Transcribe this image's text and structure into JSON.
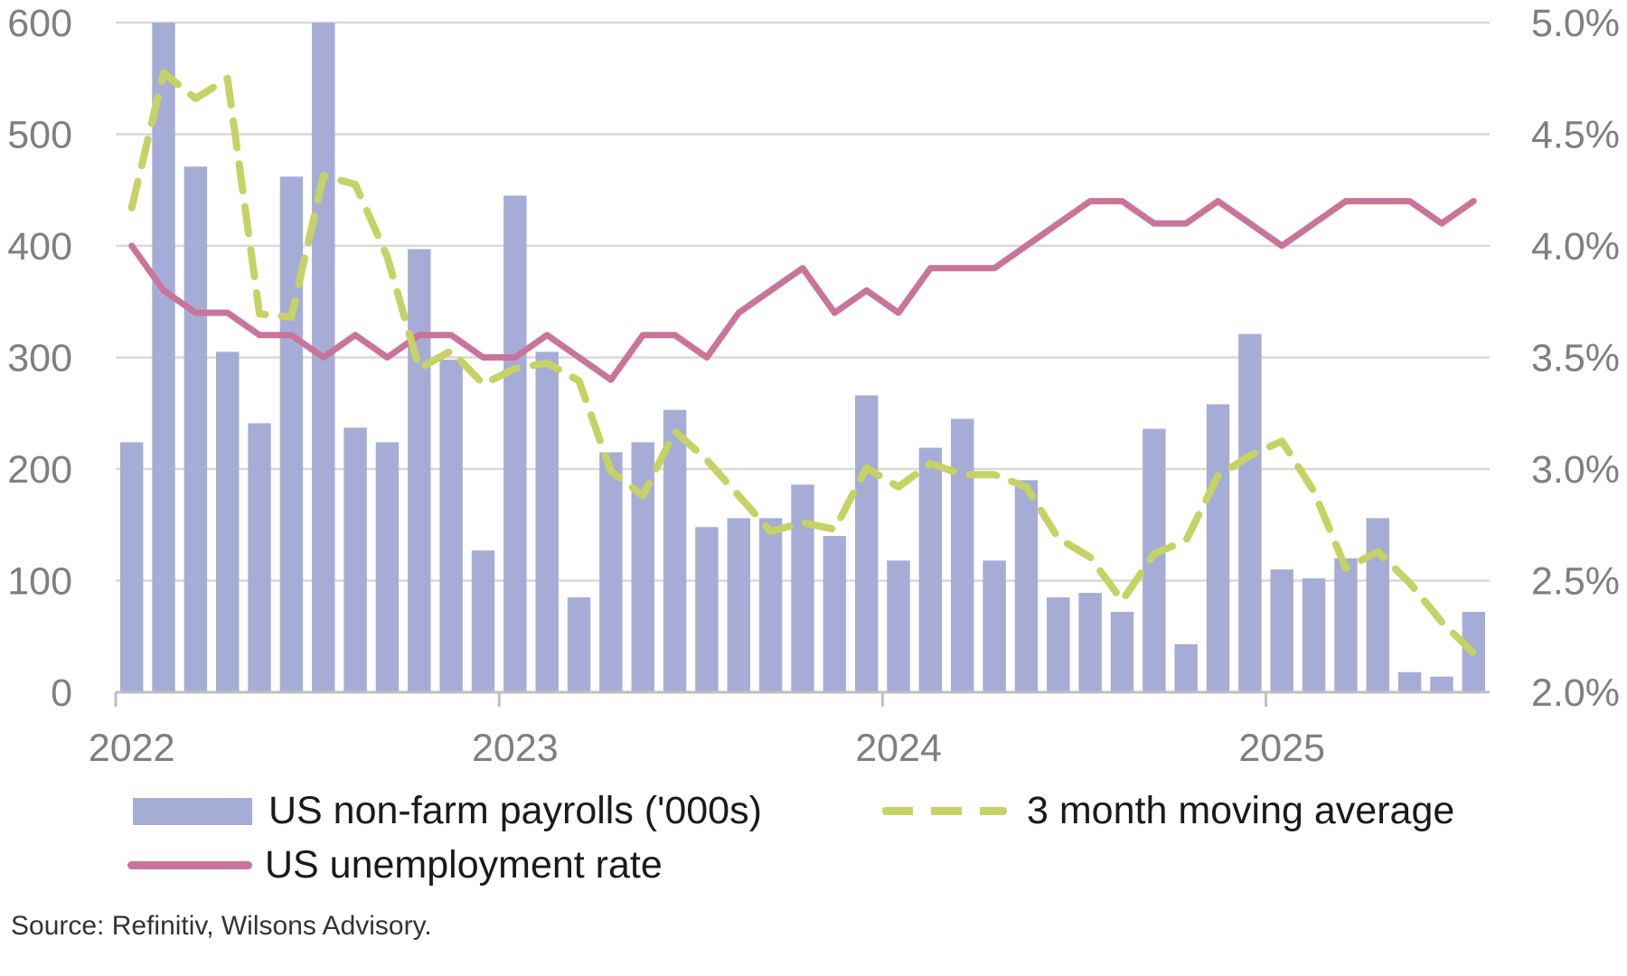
{
  "chart_data": {
    "type": "bar",
    "title": "",
    "colors": {
      "payrolls": "#a5add6",
      "moving_average": "#c6d264",
      "unemployment": "#c9749a",
      "grid": "#d9d9d9"
    },
    "x_tick_labels": [
      "2022",
      "2023",
      "2024",
      "2025"
    ],
    "left_axis": {
      "ylim": [
        0,
        600
      ],
      "ticks": [
        "0",
        "100",
        "200",
        "300",
        "400",
        "500",
        "600"
      ]
    },
    "right_axis": {
      "ylim": [
        2.0,
        5.0
      ],
      "ticks": [
        "2.0%",
        "2.5%",
        "3.0%",
        "3.5%",
        "4.0%",
        "4.5%",
        "5.0%"
      ]
    },
    "months": [
      "2022-01",
      "2022-02",
      "2022-03",
      "2022-04",
      "2022-05",
      "2022-06",
      "2022-07",
      "2022-08",
      "2022-09",
      "2022-10",
      "2022-11",
      "2022-12",
      "2023-01",
      "2023-02",
      "2023-03",
      "2023-04",
      "2023-05",
      "2023-06",
      "2023-07",
      "2023-08",
      "2023-09",
      "2023-10",
      "2023-11",
      "2023-12",
      "2024-01",
      "2024-02",
      "2024-03",
      "2024-04",
      "2024-05",
      "2024-06",
      "2024-07",
      "2024-08",
      "2024-09",
      "2024-10",
      "2024-11",
      "2024-12",
      "2025-01",
      "2025-02",
      "2025-03",
      "2025-04",
      "2025-05",
      "2025-06",
      "2025-07"
    ],
    "series": [
      {
        "name": "US non-farm payrolls ('000s)",
        "type": "bar",
        "axis": "left",
        "values": [
          224,
          600,
          471,
          305,
          241,
          462,
          600,
          237,
          224,
          397,
          298,
          127,
          445,
          305,
          85,
          215,
          224,
          253,
          148,
          156,
          156,
          186,
          140,
          266,
          118,
          219,
          245,
          118,
          190,
          85,
          89,
          72,
          236,
          43,
          258,
          321,
          110,
          102,
          120,
          156,
          18,
          14,
          72
        ]
      },
      {
        "name": "3 month moving average",
        "type": "line",
        "axis": "left",
        "values": [
          434,
          555,
          532,
          550,
          339,
          336,
          463,
          455,
          390,
          290,
          306,
          276,
          290,
          295,
          279,
          198,
          176,
          234,
          208,
          176,
          144,
          152,
          146,
          201,
          184,
          205,
          195,
          195,
          184,
          138,
          121,
          82,
          124,
          136,
          194,
          212,
          225,
          180,
          111,
          126,
          98,
          63,
          35
        ]
      },
      {
        "name": "US unemployment rate",
        "type": "line",
        "axis": "right",
        "values": [
          4.0,
          3.8,
          3.7,
          3.7,
          3.6,
          3.6,
          3.5,
          3.6,
          3.5,
          3.6,
          3.6,
          3.5,
          3.5,
          3.6,
          3.5,
          3.4,
          3.6,
          3.6,
          3.5,
          3.7,
          3.8,
          3.9,
          3.7,
          3.8,
          3.7,
          3.9,
          3.9,
          3.9,
          4.0,
          4.1,
          4.2,
          4.2,
          4.1,
          4.1,
          4.2,
          4.1,
          4.0,
          4.1,
          4.2,
          4.2,
          4.2,
          4.1,
          4.2
        ]
      }
    ]
  },
  "legend": {
    "payrolls_label": "US non-farm payrolls ('000s)",
    "moving_average_label": "3 month moving average",
    "unemployment_label": "US unemployment rate"
  },
  "source_note": "Source: Refinitiv, Wilsons Advisory."
}
